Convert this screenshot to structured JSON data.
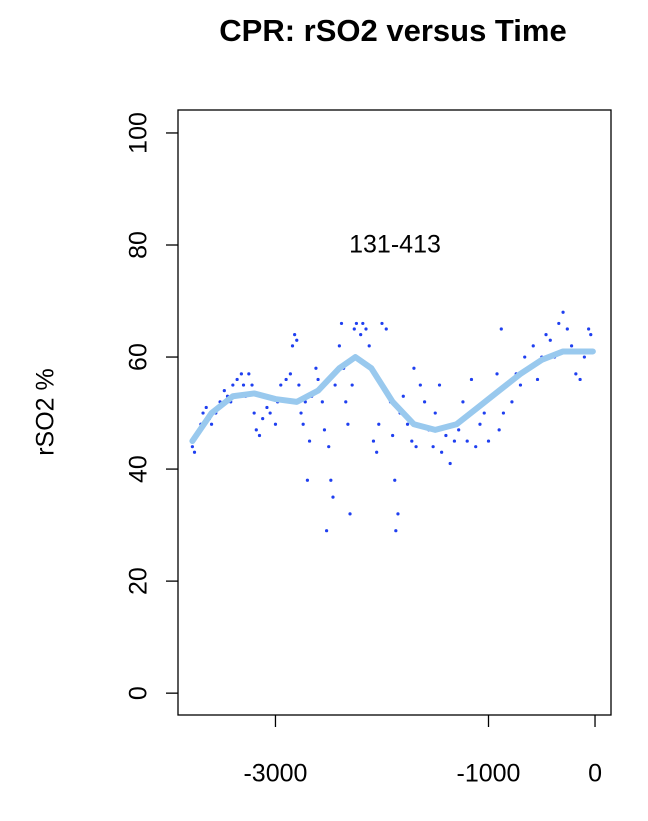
{
  "chart_data": {
    "type": "scatter",
    "title": "CPR: rSO2 versus Time",
    "ylabel": "rSO2 %",
    "annotation": "131-413",
    "xlim": [
      -3915,
      150
    ],
    "ylim": [
      -3.9,
      104.1
    ],
    "xticks": [
      -3000,
      -1000,
      0
    ],
    "yticks": [
      0,
      20,
      40,
      60,
      80,
      100
    ],
    "series": [
      {
        "name": "rSO2",
        "color": "#1f3ff0",
        "x": [
          -3780,
          -3760,
          -3740,
          -3700,
          -3680,
          -3650,
          -3620,
          -3600,
          -3560,
          -3520,
          -3480,
          -3450,
          -3420,
          -3400,
          -3360,
          -3320,
          -3300,
          -3280,
          -3250,
          -3220,
          -3200,
          -3180,
          -3150,
          -3120,
          -3080,
          -3050,
          -3000,
          -2980,
          -2950,
          -2900,
          -2860,
          -2840,
          -2820,
          -2800,
          -2780,
          -2760,
          -2740,
          -2720,
          -2700,
          -2680,
          -2660,
          -2620,
          -2600,
          -2560,
          -2540,
          -2520,
          -2500,
          -2480,
          -2460,
          -2440,
          -2400,
          -2380,
          -2360,
          -2340,
          -2320,
          -2300,
          -2280,
          -2260,
          -2240,
          -2200,
          -2180,
          -2150,
          -2120,
          -2100,
          -2080,
          -2050,
          -2030,
          -2000,
          -1960,
          -1920,
          -1900,
          -1880,
          -1870,
          -1850,
          -1830,
          -1800,
          -1760,
          -1720,
          -1700,
          -1680,
          -1640,
          -1600,
          -1560,
          -1520,
          -1500,
          -1460,
          -1440,
          -1400,
          -1360,
          -1320,
          -1280,
          -1240,
          -1200,
          -1160,
          -1120,
          -1080,
          -1040,
          -1000,
          -960,
          -920,
          -900,
          -880,
          -860,
          -820,
          -780,
          -740,
          -700,
          -660,
          -620,
          -580,
          -540,
          -500,
          -460,
          -420,
          -380,
          -340,
          -300,
          -260,
          -220,
          -180,
          -140,
          -100,
          -60,
          -40
        ],
        "values": [
          44,
          43,
          46,
          48,
          50,
          51,
          49,
          48,
          50,
          52,
          54,
          53,
          52,
          55,
          56,
          57,
          55,
          53,
          57,
          55,
          50,
          47,
          46,
          49,
          51,
          50,
          48,
          52,
          55,
          56,
          57,
          62,
          64,
          63,
          55,
          50,
          48,
          52,
          38,
          45,
          53,
          58,
          56,
          52,
          47,
          29,
          44,
          38,
          35,
          55,
          62,
          66,
          58,
          52,
          48,
          32,
          55,
          65,
          66,
          64,
          66,
          65,
          62,
          58,
          45,
          43,
          48,
          66,
          65,
          52,
          46,
          38,
          29,
          32,
          50,
          53,
          48,
          45,
          58,
          44,
          55,
          52,
          47,
          44,
          50,
          55,
          43,
          46,
          41,
          45,
          47,
          52,
          45,
          56,
          44,
          48,
          50,
          45,
          53,
          57,
          47,
          65,
          50,
          55,
          52,
          57,
          55,
          60,
          58,
          62,
          56,
          60,
          64,
          63,
          60,
          66,
          68,
          65,
          62,
          57,
          56,
          60,
          65,
          64
        ]
      },
      {
        "name": "smooth",
        "type": "line",
        "color": "#99c9ee",
        "x": [
          -3780,
          -3600,
          -3400,
          -3200,
          -3000,
          -2800,
          -2600,
          -2400,
          -2250,
          -2100,
          -1900,
          -1700,
          -1500,
          -1300,
          -1100,
          -900,
          -700,
          -500,
          -300,
          -100,
          -20
        ],
        "values": [
          45,
          50,
          53,
          53.5,
          52.5,
          52,
          54,
          58,
          60,
          58,
          52,
          48,
          47,
          48,
          51,
          54,
          57,
          59.5,
          61,
          61,
          61
        ]
      }
    ]
  }
}
